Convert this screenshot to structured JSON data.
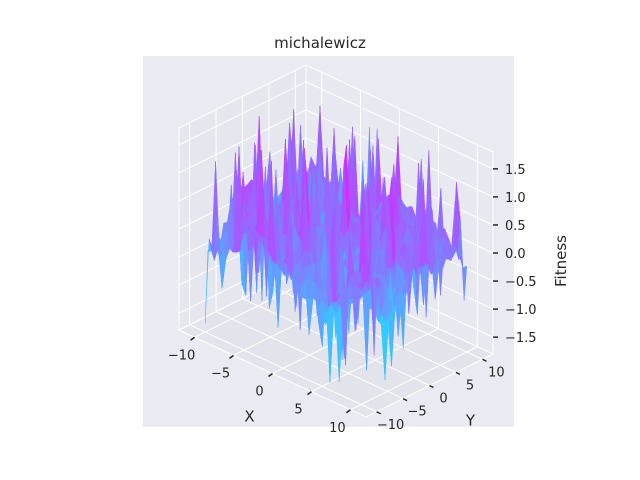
{
  "chart_data": {
    "type": "surface3d",
    "title": "michalewicz",
    "xlabel": "X",
    "ylabel": "Y",
    "zlabel": "Fitness",
    "xlim": [
      -12,
      12
    ],
    "ylim": [
      -12,
      12
    ],
    "zlim": [
      -1.8,
      1.8
    ],
    "x_ticks": [
      -10,
      -5,
      0,
      5,
      10
    ],
    "y_ticks": [
      -10,
      -5,
      0,
      5,
      10
    ],
    "z_ticks": [
      -1.5,
      -1.0,
      -0.5,
      0.0,
      0.5,
      1.0,
      1.5
    ],
    "x_tick_labels": [
      "−10",
      "−5",
      "0",
      "5",
      "10"
    ],
    "y_tick_labels": [
      "−10",
      "−5",
      "0",
      "5",
      "10"
    ],
    "z_tick_labels": [
      "−1.5",
      "−1.0",
      "−0.5",
      "0.0",
      "0.5",
      "1.0",
      "1.5"
    ],
    "surface_x_range": [
      -10,
      10
    ],
    "surface_y_range": [
      -10,
      10
    ],
    "colormap": "cool",
    "colormap_low": "#00ffff",
    "colormap_high": "#ff00ff",
    "pane_color": "#eaeaf2",
    "grid": true
  }
}
